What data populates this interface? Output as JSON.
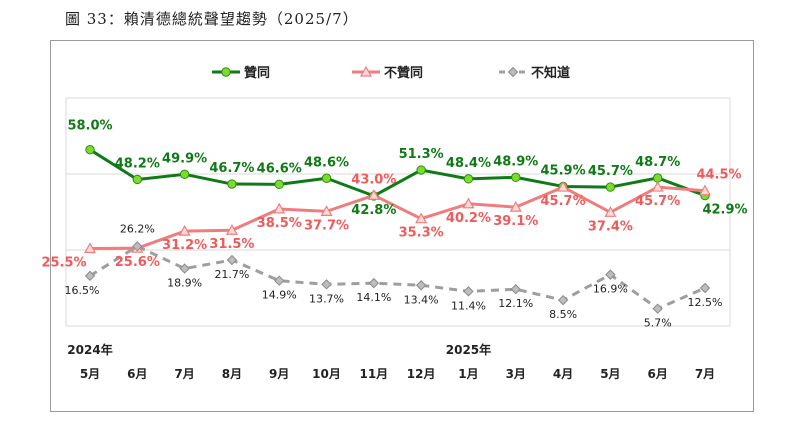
{
  "figure_title": "圖 33：賴清德總統聲望趨勢（2025/7）",
  "chart_data": {
    "type": "line",
    "title": "",
    "xlabel": "",
    "ylabel": "",
    "categories": [
      "5月",
      "6月",
      "7月",
      "8月",
      "9月",
      "10月",
      "11月",
      "12月",
      "1月",
      "3月",
      "4月",
      "5月",
      "6月",
      "7月"
    ],
    "year_labels": [
      {
        "index": 0,
        "label": "2024年"
      },
      {
        "index": 8,
        "label": "2025年"
      }
    ],
    "series": [
      {
        "name": "贊同",
        "color": "#0f7a16",
        "marker": "circle",
        "values": [
          58.0,
          48.2,
          49.9,
          46.7,
          46.6,
          48.6,
          42.8,
          51.3,
          48.4,
          48.9,
          45.9,
          45.7,
          48.7,
          42.9
        ],
        "labels": [
          "58.0%",
          "48.2%",
          "49.9%",
          "46.7%",
          "46.6%",
          "48.6%",
          "42.8%",
          "51.3%",
          "48.4%",
          "48.9%",
          "45.9%",
          "45.7%",
          "48.7%",
          "42.9%"
        ]
      },
      {
        "name": "不贊同",
        "color": "#f07d7d",
        "marker": "triangle",
        "values": [
          25.5,
          25.6,
          31.2,
          31.5,
          38.5,
          37.7,
          43.0,
          35.3,
          40.2,
          39.1,
          45.7,
          37.4,
          45.7,
          44.5
        ],
        "labels": [
          "25.5%",
          "25.6%",
          "31.2%",
          "31.5%",
          "38.5%",
          "37.7%",
          "43.0%",
          "35.3%",
          "40.2%",
          "39.1%",
          "45.7%",
          "37.4%",
          "45.7%",
          "44.5%"
        ]
      },
      {
        "name": "不知道",
        "color": "#9e9e9e",
        "marker": "diamond",
        "values": [
          16.5,
          26.2,
          18.9,
          21.7,
          14.9,
          13.7,
          14.1,
          13.4,
          11.4,
          12.1,
          8.5,
          16.9,
          5.7,
          12.5
        ],
        "labels": [
          "16.5%",
          "26.2%",
          "18.9%",
          "21.7%",
          "14.9%",
          "13.7%",
          "14.1%",
          "13.4%",
          "11.4%",
          "12.1%",
          "8.5%",
          "16.9%",
          "5.7%",
          "12.5%"
        ]
      }
    ],
    "ylim": [
      0,
      75
    ],
    "gridlines": [
      25,
      50
    ],
    "grid": true,
    "legend_position": "top-center"
  }
}
